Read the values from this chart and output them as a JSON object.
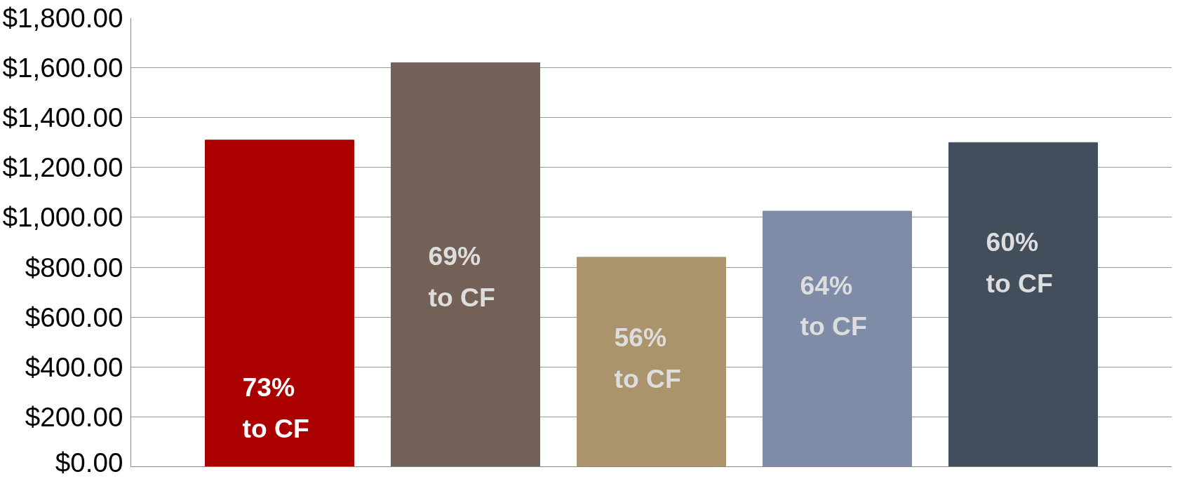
{
  "chart_data": {
    "type": "bar",
    "categories": [
      null,
      null,
      null,
      null,
      null
    ],
    "values": [
      1310,
      1620,
      840,
      1025,
      1300
    ],
    "colors": [
      "#ab0000",
      "#736158",
      "#ab936b",
      "#7f8ca8",
      "#424e5c"
    ],
    "ylim": [
      0,
      1800
    ],
    "yticks": [
      {
        "value": 0,
        "label": "$0.00"
      },
      {
        "value": 200,
        "label": "$200.00"
      },
      {
        "value": 400,
        "label": "$400.00"
      },
      {
        "value": 600,
        "label": "$600.00"
      },
      {
        "value": 800,
        "label": "$800.00"
      },
      {
        "value": 1000,
        "label": "$1,000.00"
      },
      {
        "value": 1200,
        "label": "$1,200.00"
      },
      {
        "value": 1400,
        "label": "$1,400.00"
      },
      {
        "value": 1600,
        "label": "$1,600.00"
      },
      {
        "value": 1800,
        "label": "$1,800.00"
      }
    ],
    "grid": "y",
    "tick_labels": "y",
    "annotations": [
      "73%\nto CF",
      "69%\nto CF",
      "56%\nto CF",
      "64%\nto CF",
      "60%\nto CF"
    ]
  }
}
